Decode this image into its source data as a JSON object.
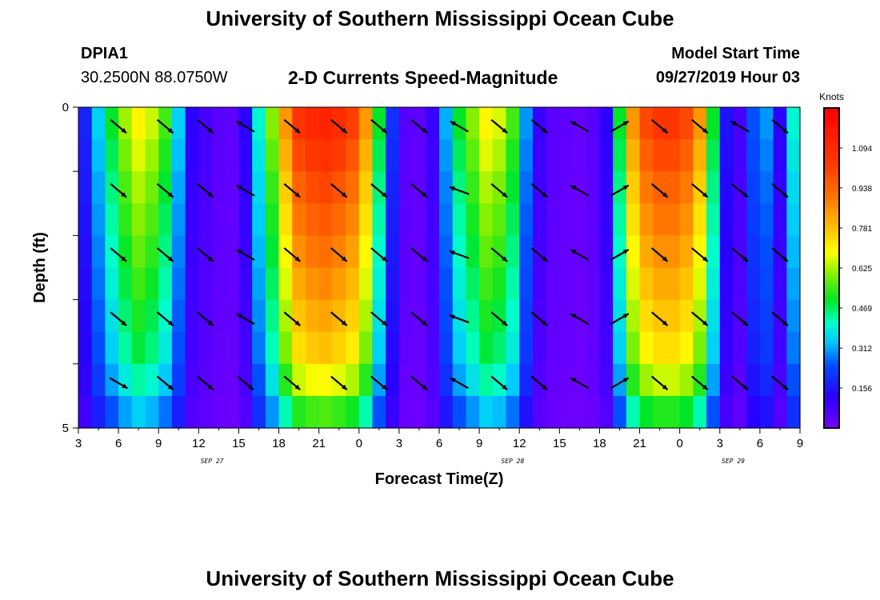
{
  "page": {
    "title_top": "University of Southern Mississippi Ocean Cube",
    "title_bottom": "University of Southern Mississippi Ocean Cube",
    "station_id": "DPIA1",
    "station_coords": "30.2500N 88.0750W",
    "chart_title": "2-D Currents Speed-Magnitude",
    "model_label": "Model Start Time",
    "model_time": "09/27/2019 Hour 03"
  },
  "chart_data": {
    "type": "heatmap",
    "title": "2-D Currents Speed-Magnitude",
    "xlabel": "Forecast Time(Z)",
    "ylabel": "Depth (ft)",
    "xlim": [
      0,
      54
    ],
    "ylim": [
      0,
      5
    ],
    "y_tick_labels": [
      "0",
      "5"
    ],
    "y_tick_values": [
      0,
      1,
      2,
      3,
      4,
      5
    ],
    "x_tick_labels": [
      "3",
      "6",
      "9",
      "12",
      "15",
      "18",
      "21",
      "0",
      "3",
      "6",
      "9",
      "12",
      "15",
      "18",
      "21",
      "0",
      "3",
      "6",
      "9"
    ],
    "date_labels": [
      {
        "text": "SEP 27",
        "x": 10
      },
      {
        "text": "SEP 28",
        "x": 32.5
      },
      {
        "text": "SEP 29",
        "x": 49
      }
    ],
    "colorbar": {
      "title": "Knots",
      "labels": [
        "0.156",
        "0.312",
        "0.469",
        "0.625",
        "0.781",
        "0.938",
        "1.094"
      ],
      "values": [
        0.156,
        0.312,
        0.469,
        0.625,
        0.781,
        0.938,
        1.094
      ],
      "vmin": 0.0,
      "vmax": 1.25
    },
    "depth_rows": [
      0.25,
      0.75,
      1.25,
      1.75,
      2.25,
      2.75,
      3.25,
      3.75,
      4.25,
      4.75
    ],
    "surface_speed_by_hour": [
      0.18,
      0.35,
      0.5,
      0.62,
      0.7,
      0.65,
      0.55,
      0.35,
      0.12,
      0.08,
      0.05,
      0.04,
      0.12,
      0.4,
      0.6,
      0.85,
      1.05,
      1.1,
      1.12,
      1.08,
      1.02,
      0.85,
      0.5,
      0.2,
      0.05,
      0.04,
      0.1,
      0.32,
      0.5,
      0.6,
      0.7,
      0.66,
      0.55,
      0.3,
      0.1,
      0.05,
      0.04,
      0.03,
      0.05,
      0.12,
      0.5,
      0.85,
      1.0,
      1.05,
      1.05,
      1.0,
      0.85,
      0.5,
      0.15,
      0.08,
      0.25,
      0.3,
      0.12,
      0.4,
      0.65
    ],
    "depth_scale_by_row": [
      1.0,
      0.95,
      0.9,
      0.86,
      0.82,
      0.78,
      0.74,
      0.7,
      0.62,
      0.5
    ],
    "vector_hours": [
      3,
      6.5,
      9.5,
      12.5,
      16,
      19.5,
      22.5,
      25.5,
      28.5,
      31.5,
      34.5,
      37.5,
      40.5,
      43.5,
      46.5,
      49.5,
      52.5
    ],
    "vector_depths": [
      0.15,
      1.15,
      2.15,
      3.15,
      4.15
    ],
    "vector_direction_deg": [
      [
        -40,
        -40,
        -40,
        -40,
        -30
      ],
      [
        -40,
        -40,
        -40,
        -40,
        -40
      ],
      [
        -40,
        -40,
        -40,
        -40,
        -40
      ],
      [
        150,
        150,
        150,
        150,
        -40
      ],
      [
        -40,
        -40,
        -40,
        -40,
        -40
      ],
      [
        -40,
        -40,
        -40,
        -40,
        -40
      ],
      [
        -40,
        -40,
        -40,
        -40,
        -40
      ],
      [
        -40,
        -40,
        -40,
        -40,
        -40
      ],
      [
        150,
        160,
        160,
        160,
        150
      ],
      [
        -40,
        -40,
        -40,
        -40,
        -40
      ],
      [
        -40,
        -40,
        -40,
        -40,
        -40
      ],
      [
        150,
        150,
        150,
        150,
        150
      ],
      [
        30,
        30,
        30,
        30,
        30
      ],
      [
        -40,
        -40,
        -40,
        -40,
        -40
      ],
      [
        -40,
        -40,
        -40,
        -40,
        -40
      ],
      [
        150,
        -40,
        -40,
        -40,
        -40
      ],
      [
        -40,
        -40,
        -40,
        -40,
        -40
      ]
    ]
  }
}
